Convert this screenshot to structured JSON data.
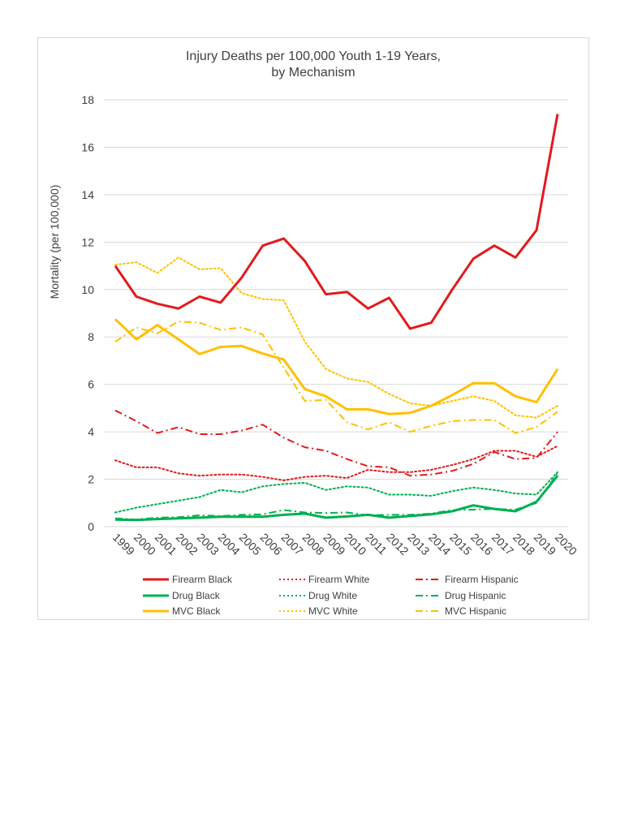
{
  "chart_data": {
    "type": "line",
    "title_lines": [
      "Injury Deaths per 100,000 Youth 1-19 Years,",
      "by Mechanism"
    ],
    "xlabel": "",
    "ylabel": "Mortality (per 100,000)",
    "ylim": [
      0,
      18
    ],
    "yticks": [
      0,
      2,
      4,
      6,
      8,
      10,
      12,
      14,
      16,
      18
    ],
    "grid": true,
    "legend_position": "bottom",
    "x": [
      "1999",
      "2000",
      "2001",
      "2002",
      "2003",
      "2004",
      "2005",
      "2006",
      "2007",
      "2008",
      "2009",
      "2010",
      "2011",
      "2012",
      "2013",
      "2014",
      "2015",
      "2016",
      "2017",
      "2018",
      "2019",
      "2020"
    ],
    "series": [
      {
        "name": "Firearm Black",
        "color": "#e31a1c",
        "style": "solid",
        "values": [
          11.0,
          9.7,
          9.4,
          9.2,
          9.7,
          9.45,
          10.5,
          11.85,
          12.15,
          11.2,
          9.8,
          9.9,
          9.2,
          9.65,
          8.35,
          8.6,
          10.0,
          11.3,
          11.85,
          11.35,
          12.5,
          17.4
        ]
      },
      {
        "name": "Firearm White",
        "color": "#e31a1c",
        "style": "dotted",
        "values": [
          2.8,
          2.5,
          2.5,
          2.25,
          2.15,
          2.2,
          2.2,
          2.1,
          1.95,
          2.1,
          2.15,
          2.05,
          2.4,
          2.3,
          2.3,
          2.4,
          2.6,
          2.85,
          3.2,
          3.2,
          2.95,
          3.4
        ]
      },
      {
        "name": "Firearm Hispanic",
        "color": "#e31a1c",
        "style": "dashdot",
        "values": [
          4.9,
          4.45,
          3.95,
          4.2,
          3.9,
          3.9,
          4.05,
          4.3,
          3.75,
          3.35,
          3.2,
          2.85,
          2.55,
          2.5,
          2.15,
          2.2,
          2.35,
          2.65,
          3.15,
          2.85,
          2.9,
          4.0
        ]
      },
      {
        "name": "Drug Black",
        "color": "#00b050",
        "style": "solid",
        "values": [
          0.3,
          0.28,
          0.32,
          0.35,
          0.38,
          0.42,
          0.42,
          0.42,
          0.5,
          0.55,
          0.38,
          0.43,
          0.5,
          0.38,
          0.45,
          0.52,
          0.65,
          0.9,
          0.75,
          0.65,
          1.05,
          2.15
        ]
      },
      {
        "name": "Drug White",
        "color": "#00b050",
        "style": "dotted",
        "values": [
          0.6,
          0.8,
          0.95,
          1.1,
          1.25,
          1.55,
          1.45,
          1.7,
          1.8,
          1.85,
          1.55,
          1.7,
          1.65,
          1.35,
          1.35,
          1.3,
          1.5,
          1.65,
          1.55,
          1.4,
          1.35,
          2.3
        ]
      },
      {
        "name": "Drug Hispanic",
        "color": "#00b050",
        "style": "dashdot",
        "values": [
          0.35,
          0.3,
          0.38,
          0.4,
          0.48,
          0.45,
          0.5,
          0.52,
          0.7,
          0.6,
          0.58,
          0.6,
          0.48,
          0.5,
          0.5,
          0.55,
          0.7,
          0.72,
          0.75,
          0.72,
          1.0,
          2.25
        ]
      },
      {
        "name": "MVC Black",
        "color": "#ffc000",
        "style": "solid",
        "values": [
          8.75,
          7.9,
          8.5,
          7.9,
          7.28,
          7.58,
          7.62,
          7.3,
          7.05,
          5.8,
          5.5,
          4.95,
          4.95,
          4.75,
          4.8,
          5.1,
          5.55,
          6.05,
          6.05,
          5.5,
          5.25,
          6.65
        ]
      },
      {
        "name": "MVC White",
        "color": "#ffc000",
        "style": "dotted",
        "values": [
          11.05,
          11.15,
          10.7,
          11.35,
          10.85,
          10.9,
          9.85,
          9.6,
          9.55,
          7.8,
          6.65,
          6.25,
          6.1,
          5.6,
          5.2,
          5.1,
          5.3,
          5.5,
          5.3,
          4.7,
          4.6,
          5.1
        ]
      },
      {
        "name": "MVC Hispanic",
        "color": "#ffc000",
        "style": "dashdot",
        "values": [
          7.8,
          8.4,
          8.15,
          8.65,
          8.6,
          8.3,
          8.4,
          8.1,
          6.7,
          5.3,
          5.35,
          4.4,
          4.1,
          4.4,
          4.0,
          4.25,
          4.45,
          4.5,
          4.5,
          3.95,
          4.2,
          4.85
        ]
      }
    ]
  }
}
